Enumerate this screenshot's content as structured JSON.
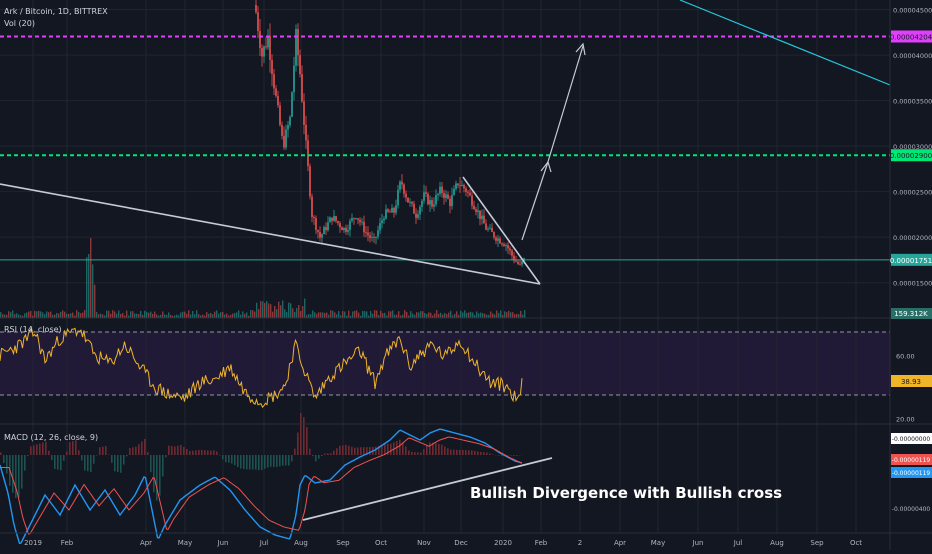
{
  "chart_data": {
    "type": "candlestick",
    "symbol_label": "Ark / Bitcoin, 1D, BITTREX",
    "volume_label": "Vol (20)",
    "rsi_label": "RSI (14, close)",
    "macd_label": "MACD (12, 26, close, 9)",
    "annotation": "Bullish Divergence with Bullish cross",
    "x_ticks": [
      "2019",
      "Feb",
      "Apr",
      "May",
      "Jun",
      "Jul",
      "Aug",
      "Sep",
      "Oct",
      "Nov",
      "Dec",
      "2020",
      "Feb",
      "2",
      "Apr",
      "May",
      "Jun",
      "Jul",
      "Aug",
      "Sep",
      "Oct"
    ],
    "price_ticks": [
      "0.00001500",
      "0.00002000",
      "0.00002500",
      "0.00003000",
      "0.00003500",
      "0.00004000",
      "0.00004500"
    ],
    "price_lines": [
      {
        "label": "0.00004204",
        "value": 4.204e-05,
        "color": "#e040fb"
      },
      {
        "label": "0.00002900",
        "value": 2.9e-05,
        "color": "#00e676"
      },
      {
        "label": "0.00001751",
        "value": 1.751e-05,
        "color": "#26a69a"
      }
    ],
    "volume_value_label": "159.312K",
    "rsi_ticks": [
      "20.00",
      "60.00"
    ],
    "rsi_levels": [
      70,
      30
    ],
    "rsi_value_label": "38.93",
    "macd_ticks": [
      "-0.00000000",
      "-0.00000119",
      "-0.00000119",
      "-0.00000400"
    ],
    "colors": {
      "up": "#26a69a",
      "down": "#ef5350",
      "rsi": "#f0b429",
      "macd": "#2196f3",
      "signal": "#ef5350",
      "trend": "#c5cad6"
    }
  }
}
